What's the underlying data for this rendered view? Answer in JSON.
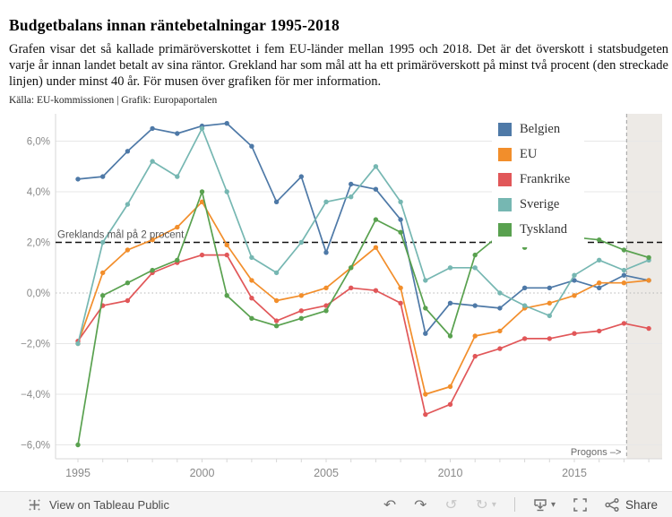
{
  "header": {
    "title": "Budgetbalans innan räntebetalningar 1995-2018",
    "description": "Grafen visar det så kallade primäröverskottet i fem EU-länder mellan 1995 och 2018. Det är det överskott i statsbudgeten varje år innan landet betalt av sina räntor. Grekland har som mål att ha ett primäröverskott på minst två procent (den streckade linjen) under minst 40 år. För musen över grafiken för mer information.",
    "source": "Källa: EU-kommissionen | Grafik: Europaportalen"
  },
  "chart_data": {
    "type": "line",
    "x": [
      1995,
      1996,
      1997,
      1998,
      1999,
      2000,
      2001,
      2002,
      2003,
      2004,
      2005,
      2006,
      2007,
      2008,
      2009,
      2010,
      2011,
      2012,
      2013,
      2014,
      2015,
      2016,
      2017,
      2018
    ],
    "series": [
      {
        "name": "Belgien",
        "color": "#4e79a7",
        "values": [
          4.5,
          4.6,
          5.6,
          6.5,
          6.3,
          6.6,
          6.7,
          5.8,
          3.6,
          4.6,
          1.6,
          4.3,
          4.1,
          2.9,
          -1.6,
          -0.4,
          -0.5,
          -0.6,
          0.2,
          0.2,
          0.5,
          0.2,
          0.7,
          0.5
        ]
      },
      {
        "name": "EU",
        "color": "#f28e2b",
        "values": [
          -2.0,
          0.8,
          1.7,
          2.1,
          2.6,
          3.6,
          1.9,
          0.5,
          -0.3,
          -0.1,
          0.2,
          1.0,
          1.8,
          0.2,
          -4.0,
          -3.7,
          -1.7,
          -1.5,
          -0.6,
          -0.4,
          -0.1,
          0.4,
          0.4,
          0.5
        ]
      },
      {
        "name": "Frankrike",
        "color": "#e15759",
        "values": [
          -1.9,
          -0.5,
          -0.3,
          0.8,
          1.2,
          1.5,
          1.5,
          -0.2,
          -1.1,
          -0.7,
          -0.5,
          0.2,
          0.1,
          -0.4,
          -4.8,
          -4.4,
          -2.5,
          -2.2,
          -1.8,
          -1.8,
          -1.6,
          -1.5,
          -1.2,
          -1.4
        ]
      },
      {
        "name": "Sverige",
        "color": "#76b7b2",
        "values": [
          -2.0,
          2.0,
          3.5,
          5.2,
          4.6,
          6.5,
          4.0,
          1.4,
          0.8,
          2.0,
          3.6,
          3.8,
          5.0,
          3.6,
          0.5,
          1.0,
          1.0,
          0.0,
          -0.5,
          -0.9,
          0.7,
          1.3,
          0.9,
          1.3
        ]
      },
      {
        "name": "Tyskland",
        "color": "#59a14f",
        "values": [
          -6.0,
          -0.1,
          0.4,
          0.9,
          1.3,
          4.0,
          -0.1,
          -1.0,
          -1.3,
          -1.0,
          -0.7,
          1.0,
          2.9,
          2.4,
          -0.6,
          -1.7,
          1.5,
          2.3,
          1.8,
          2.2,
          2.2,
          2.1,
          1.7,
          1.4
        ]
      }
    ],
    "ylim": [
      -6.6,
      7.0
    ],
    "yticks": [
      6,
      4,
      2,
      0,
      -2,
      -4,
      -6
    ],
    "ytick_labels": [
      "6,0%",
      "4,0%",
      "2,0%",
      "0,0%",
      "−2,0%",
      "−4,0%",
      "−6,0%"
    ],
    "xticks": [
      1995,
      2000,
      2005,
      2010,
      2015
    ],
    "xtick_labels": [
      "1995",
      "2000",
      "2005",
      "2010",
      "2015"
    ],
    "grid": "horizontal",
    "legend_position": "top-right",
    "reference_line": {
      "value": 2,
      "label": "Greklands mål på 2 procent",
      "color": "#111111",
      "style": "dashed"
    },
    "forecast": {
      "label": "Progons –>",
      "shade_color": "#edeae6",
      "divider_color": "#adadad",
      "start_year": 2017
    }
  },
  "toolbar": {
    "view_label": "View on Tableau Public",
    "share_label": "Share",
    "icons": {
      "tableau_logo": "tableau-logo",
      "undo": "↶",
      "redo": "↷",
      "reset": "↺",
      "refresh": "↻",
      "caret": "▾",
      "download": "download-monitor",
      "fullscreen": "fullscreen-brackets",
      "share": "share-nodes"
    }
  }
}
